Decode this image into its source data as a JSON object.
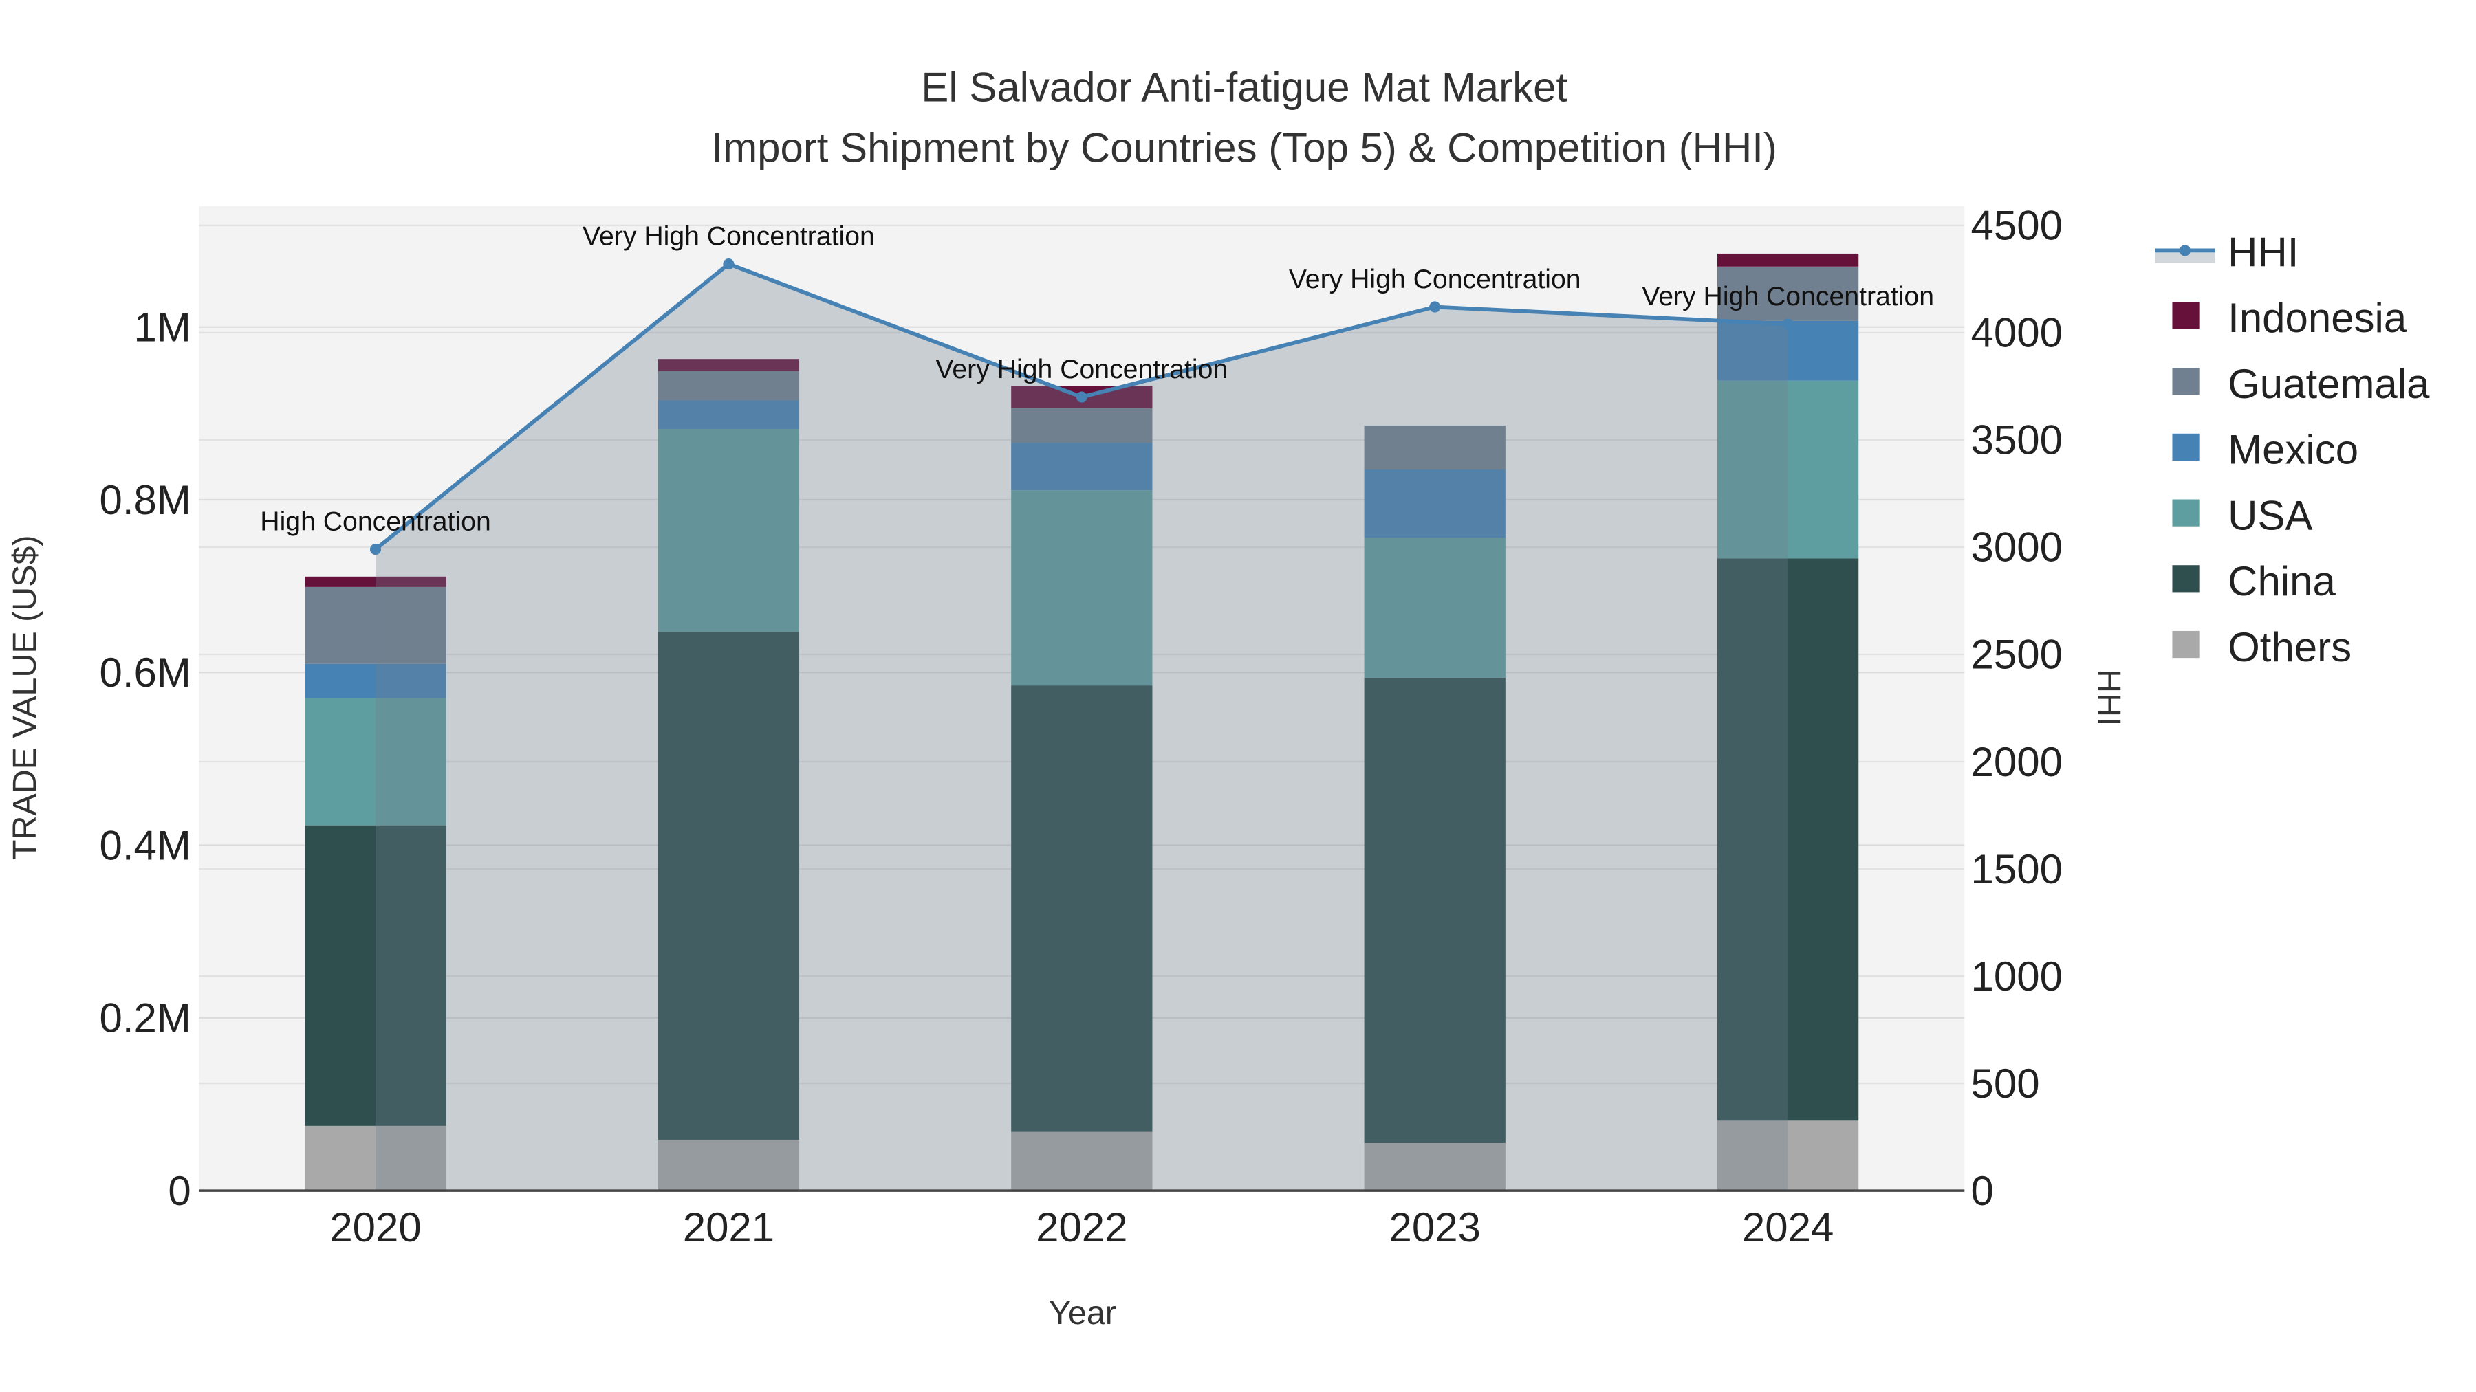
{
  "chart_data": {
    "type": "bar",
    "title": "El Salvador Anti-fatigue Mat Market",
    "subtitle": "Import Shipment by Countries (Top 5) & Competition (HHI)",
    "xlabel": "Year",
    "ylabel": "TRADE VALUE (US$)",
    "y2label": "HHI",
    "categories": [
      "2020",
      "2021",
      "2022",
      "2023",
      "2024"
    ],
    "ylim": [
      0,
      1140000
    ],
    "y2lim": [
      0,
      4590
    ],
    "yticks": [
      {
        "v": 0,
        "label": "0"
      },
      {
        "v": 200000,
        "label": "0.2M"
      },
      {
        "v": 400000,
        "label": "0.4M"
      },
      {
        "v": 600000,
        "label": "0.6M"
      },
      {
        "v": 800000,
        "label": "0.8M"
      },
      {
        "v": 1000000,
        "label": "1M"
      }
    ],
    "y2ticks": [
      0,
      500,
      1000,
      1500,
      2000,
      2500,
      3000,
      3500,
      4000,
      4500
    ],
    "stacked": true,
    "series": [
      {
        "name": "Others",
        "color": "#a9a9a9",
        "values": [
          75000,
          59000,
          68000,
          55000,
          81000
        ]
      },
      {
        "name": "China",
        "color": "#2f4f4f",
        "values": [
          348000,
          588000,
          517000,
          539000,
          651000
        ]
      },
      {
        "name": "USA",
        "color": "#5f9ea0",
        "values": [
          147000,
          235000,
          226000,
          162000,
          206000
        ]
      },
      {
        "name": "Mexico",
        "color": "#4682b4",
        "values": [
          40000,
          33000,
          55000,
          79000,
          69000
        ]
      },
      {
        "name": "Guatemala",
        "color": "#708090",
        "values": [
          89000,
          34000,
          40000,
          51000,
          63000
        ]
      },
      {
        "name": "Indonesia",
        "color": "#66113a",
        "values": [
          12000,
          14000,
          26000,
          0,
          15000
        ]
      }
    ],
    "hhi": {
      "name": "HHI",
      "color": "#4682b4",
      "values": [
        2990,
        4320,
        3700,
        4120,
        4040
      ],
      "annotations": [
        "High Concentration",
        "Very High Concentration",
        "Very High Concentration",
        "Very High Concentration",
        "Very High Concentration"
      ]
    },
    "legend_order": [
      "HHI",
      "Indonesia",
      "Guatemala",
      "Mexico",
      "USA",
      "China",
      "Others"
    ],
    "legend_position": "right",
    "grid": true
  }
}
